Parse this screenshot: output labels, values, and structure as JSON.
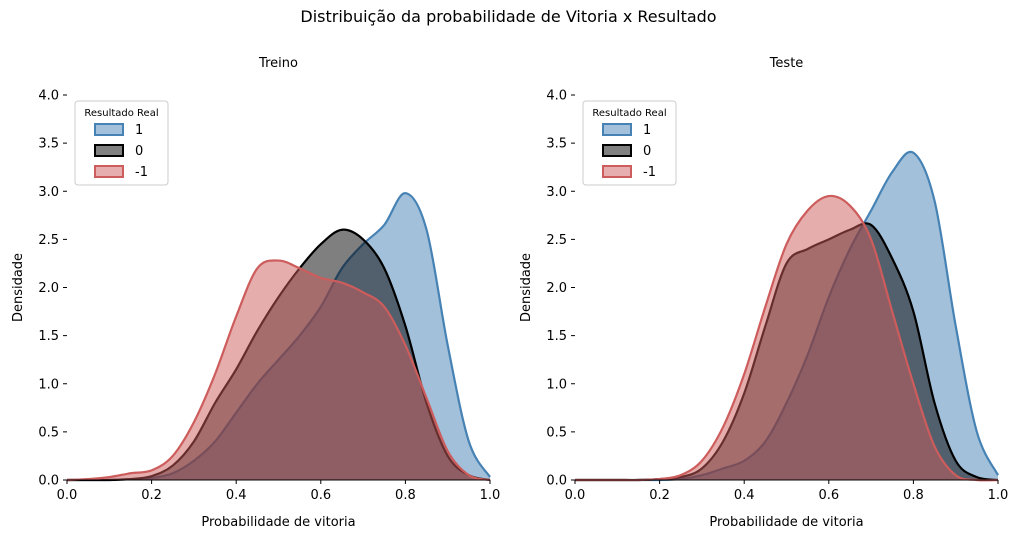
{
  "figure": {
    "title": "Distribuição da probabilidade de Vitoria x Resultado"
  },
  "chart_data": [
    {
      "type": "area",
      "title": "Treino",
      "xlabel": "Probabilidade de vitoria",
      "ylabel": "Densidade",
      "xlim": [
        0.0,
        1.0
      ],
      "ylim": [
        0.0,
        4.0
      ],
      "xticks": [
        "0.0",
        "0.2",
        "0.4",
        "0.6",
        "0.8",
        "1.0"
      ],
      "yticks": [
        "0.0",
        "0.5",
        "1.0",
        "1.5",
        "2.0",
        "2.5",
        "3.0",
        "3.5",
        "4.0"
      ],
      "legend": {
        "title": "Resultado Real",
        "placement": "top-left"
      },
      "x": [
        0.0,
        0.05,
        0.1,
        0.15,
        0.2,
        0.25,
        0.3,
        0.35,
        0.4,
        0.45,
        0.5,
        0.55,
        0.6,
        0.65,
        0.7,
        0.75,
        0.8,
        0.85,
        0.9,
        0.95,
        1.0
      ],
      "series": [
        {
          "name": "1",
          "color": "#4682b4",
          "values": [
            0.0,
            0.0,
            0.0,
            0.01,
            0.02,
            0.07,
            0.2,
            0.4,
            0.7,
            1.0,
            1.25,
            1.5,
            1.8,
            2.2,
            2.45,
            2.65,
            2.98,
            2.6,
            1.4,
            0.4,
            0.03
          ]
        },
        {
          "name": "0",
          "color": "#000000",
          "values": [
            0.0,
            0.0,
            0.0,
            0.01,
            0.04,
            0.15,
            0.4,
            0.8,
            1.15,
            1.55,
            1.9,
            2.2,
            2.45,
            2.6,
            2.5,
            2.2,
            1.6,
            0.8,
            0.25,
            0.05,
            0.0
          ]
        },
        {
          "name": "-1",
          "color": "#cd5c5c",
          "values": [
            0.0,
            0.01,
            0.03,
            0.07,
            0.1,
            0.25,
            0.6,
            1.1,
            1.7,
            2.2,
            2.28,
            2.2,
            2.1,
            2.05,
            1.95,
            1.8,
            1.4,
            0.85,
            0.3,
            0.05,
            0.0
          ]
        }
      ]
    },
    {
      "type": "area",
      "title": "Teste",
      "xlabel": "Probabilidade de vitoria",
      "ylabel": "Densidade",
      "xlim": [
        0.0,
        1.0
      ],
      "ylim": [
        0.0,
        4.0
      ],
      "xticks": [
        "0.0",
        "0.2",
        "0.4",
        "0.6",
        "0.8",
        "1.0"
      ],
      "yticks": [
        "0.0",
        "0.5",
        "1.0",
        "1.5",
        "2.0",
        "2.5",
        "3.0",
        "3.5",
        "4.0"
      ],
      "legend": {
        "title": "Resultado Real",
        "placement": "top-left"
      },
      "x": [
        0.0,
        0.05,
        0.1,
        0.15,
        0.2,
        0.25,
        0.3,
        0.35,
        0.4,
        0.45,
        0.5,
        0.55,
        0.6,
        0.65,
        0.7,
        0.75,
        0.8,
        0.85,
        0.9,
        0.95,
        1.0
      ],
      "series": [
        {
          "name": "1",
          "color": "#4682b4",
          "values": [
            0.0,
            0.0,
            0.0,
            0.0,
            0.0,
            0.01,
            0.05,
            0.12,
            0.2,
            0.4,
            0.8,
            1.3,
            1.9,
            2.4,
            2.8,
            3.2,
            3.4,
            2.9,
            1.6,
            0.5,
            0.05
          ]
        },
        {
          "name": "0",
          "color": "#000000",
          "values": [
            0.0,
            0.0,
            0.0,
            0.0,
            0.01,
            0.03,
            0.12,
            0.4,
            0.9,
            1.6,
            2.25,
            2.4,
            2.5,
            2.6,
            2.65,
            2.3,
            1.75,
            0.8,
            0.2,
            0.03,
            0.0
          ]
        },
        {
          "name": "-1",
          "color": "#cd5c5c",
          "values": [
            0.0,
            0.0,
            0.0,
            0.0,
            0.01,
            0.05,
            0.2,
            0.55,
            1.1,
            1.8,
            2.45,
            2.8,
            2.95,
            2.85,
            2.5,
            1.75,
            1.0,
            0.35,
            0.05,
            0.0,
            0.0
          ]
        }
      ]
    }
  ]
}
